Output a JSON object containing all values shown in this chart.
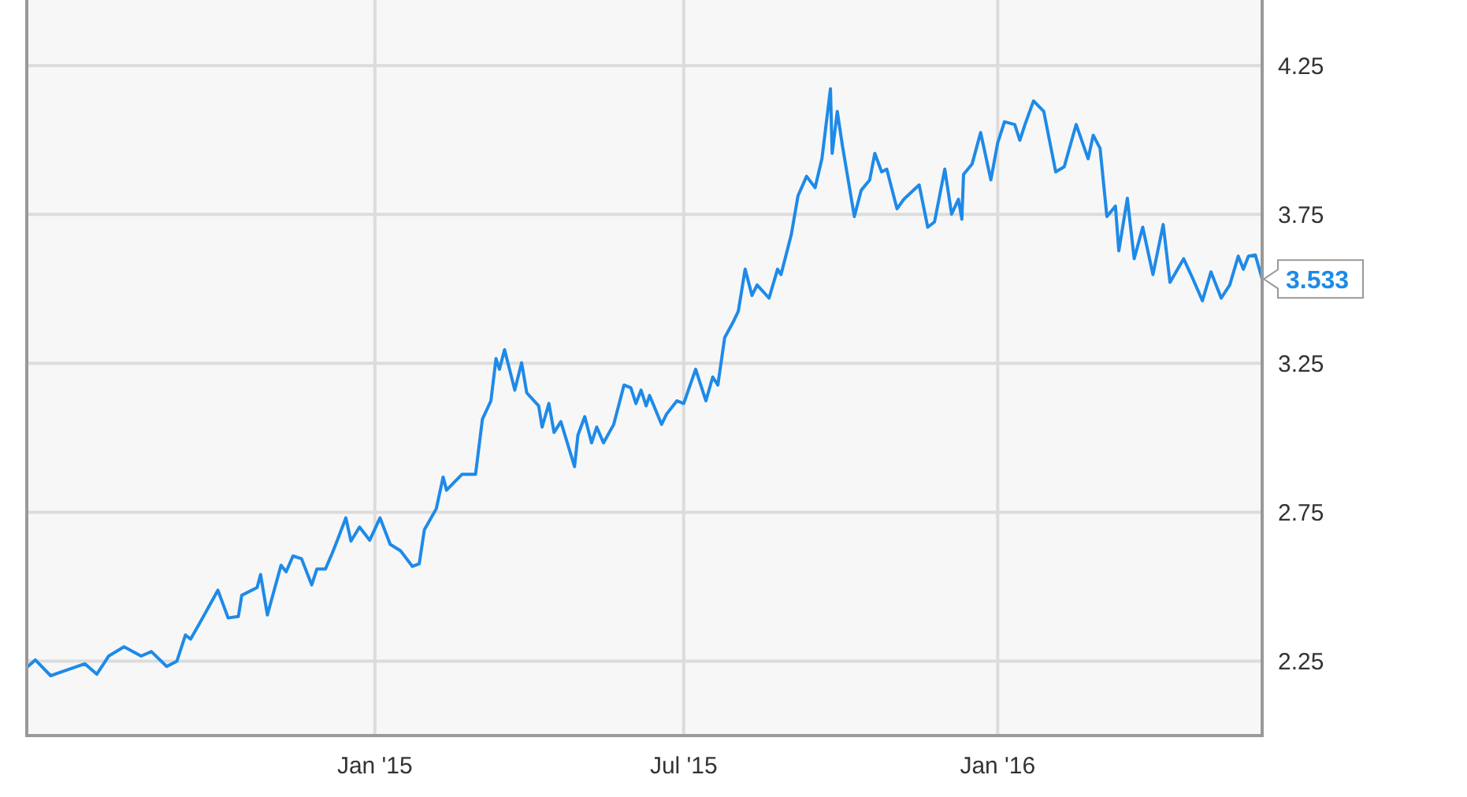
{
  "chart_data": {
    "type": "line",
    "color": "#1e8ae8",
    "xlim": [
      "2014-06-11",
      "2016-06-04"
    ],
    "ylim": [
      2.0,
      4.47
    ],
    "xticks": [
      {
        "value": "2015-01-01",
        "label": "Jan '15"
      },
      {
        "value": "2015-07-01",
        "label": "Jul '15"
      },
      {
        "value": "2016-01-01",
        "label": "Jan '16"
      }
    ],
    "yticks": [
      2.25,
      2.75,
      3.25,
      3.75,
      4.25
    ],
    "grid": true,
    "marker": "none",
    "line_style": "solid",
    "annotations": [
      {
        "text": "3.533",
        "x": "2016-06-04",
        "y": 3.533
      }
    ],
    "x": [
      "2014-06-11",
      "2014-06-16",
      "2014-06-25",
      "2014-07-02",
      "2014-07-15",
      "2014-07-22",
      "2014-07-29",
      "2014-08-07",
      "2014-08-17",
      "2014-08-23",
      "2014-09-01",
      "2014-09-07",
      "2014-09-12",
      "2014-09-15",
      "2014-09-20",
      "2014-10-01",
      "2014-10-07",
      "2014-10-13",
      "2014-10-15",
      "2014-10-24",
      "2014-10-26",
      "2014-10-30",
      "2014-11-07",
      "2014-11-10",
      "2014-11-14",
      "2014-11-19",
      "2014-11-25",
      "2014-11-28",
      "2014-12-03",
      "2014-12-07",
      "2014-12-10",
      "2014-12-15",
      "2014-12-18",
      "2014-12-23",
      "2014-12-29",
      "2015-01-04",
      "2015-01-10",
      "2015-01-16",
      "2015-01-23",
      "2015-01-27",
      "2015-01-30",
      "2015-02-06",
      "2015-02-10",
      "2015-02-12",
      "2015-02-21",
      "2015-03-01",
      "2015-03-05",
      "2015-03-10",
      "2015-03-13",
      "2015-03-15",
      "2015-03-18",
      "2015-03-24",
      "2015-03-28",
      "2015-03-31",
      "2015-04-07",
      "2015-04-09",
      "2015-04-13",
      "2015-04-16",
      "2015-04-20",
      "2015-04-28",
      "2015-04-30",
      "2015-05-04",
      "2015-05-08",
      "2015-05-11",
      "2015-05-15",
      "2015-05-21",
      "2015-05-27",
      "2015-05-31",
      "2015-06-03",
      "2015-06-06",
      "2015-06-09",
      "2015-06-11",
      "2015-06-18",
      "2015-06-21",
      "2015-06-27",
      "2015-07-01",
      "2015-07-08",
      "2015-07-14",
      "2015-07-18",
      "2015-07-21",
      "2015-07-25",
      "2015-07-30",
      "2015-08-02",
      "2015-08-06",
      "2015-08-10",
      "2015-08-13",
      "2015-08-20",
      "2015-08-25",
      "2015-08-27",
      "2015-09-02",
      "2015-09-06",
      "2015-09-11",
      "2015-09-16",
      "2015-09-20",
      "2015-09-25",
      "2015-09-26",
      "2015-09-29",
      "2015-10-02",
      "2015-10-09",
      "2015-10-13",
      "2015-10-18",
      "2015-10-21",
      "2015-10-25",
      "2015-10-28",
      "2015-11-03",
      "2015-11-07",
      "2015-11-16",
      "2015-11-21",
      "2015-11-25",
      "2015-12-01",
      "2015-12-05",
      "2015-12-09",
      "2015-12-11",
      "2015-12-12",
      "2015-12-17",
      "2015-12-22",
      "2015-12-28",
      "2016-01-01",
      "2016-01-05",
      "2016-01-11",
      "2016-01-14",
      "2016-01-17",
      "2016-01-22",
      "2016-01-28",
      "2016-02-04",
      "2016-02-09",
      "2016-02-16",
      "2016-02-23",
      "2016-02-26",
      "2016-03-01",
      "2016-03-05",
      "2016-03-10",
      "2016-03-12",
      "2016-03-17",
      "2016-03-21",
      "2016-03-26",
      "2016-04-01",
      "2016-04-07",
      "2016-04-11",
      "2016-04-19",
      "2016-04-24",
      "2016-04-30",
      "2016-05-05",
      "2016-05-11",
      "2016-05-16",
      "2016-05-21",
      "2016-05-24",
      "2016-05-27",
      "2016-05-31",
      "2016-06-04"
    ],
    "values": [
      2.229,
      2.254,
      2.201,
      2.215,
      2.241,
      2.206,
      2.267,
      2.298,
      2.267,
      2.282,
      2.232,
      2.25,
      2.338,
      2.324,
      2.374,
      2.488,
      2.395,
      2.4,
      2.471,
      2.497,
      2.541,
      2.405,
      2.572,
      2.55,
      2.603,
      2.594,
      2.506,
      2.559,
      2.559,
      2.612,
      2.656,
      2.731,
      2.653,
      2.7,
      2.656,
      2.731,
      2.642,
      2.621,
      2.568,
      2.577,
      2.691,
      2.762,
      2.868,
      2.824,
      2.877,
      2.877,
      3.062,
      3.124,
      3.266,
      3.23,
      3.296,
      3.16,
      3.252,
      3.151,
      3.107,
      3.036,
      3.115,
      3.018,
      3.054,
      2.903,
      3.009,
      3.071,
      2.983,
      3.036,
      2.983,
      3.045,
      3.177,
      3.168,
      3.115,
      3.16,
      3.107,
      3.142,
      3.045,
      3.08,
      3.124,
      3.115,
      3.23,
      3.124,
      3.204,
      3.177,
      3.336,
      3.389,
      3.425,
      3.566,
      3.478,
      3.513,
      3.469,
      3.566,
      3.548,
      3.681,
      3.813,
      3.878,
      3.84,
      3.937,
      4.172,
      3.955,
      4.096,
      3.981,
      3.743,
      3.831,
      3.866,
      3.955,
      3.893,
      3.902,
      3.769,
      3.801,
      3.849,
      3.707,
      3.725,
      3.902,
      3.751,
      3.801,
      3.734,
      3.884,
      3.919,
      4.025,
      3.866,
      3.99,
      4.061,
      4.052,
      3.999,
      4.052,
      4.131,
      4.096,
      3.893,
      3.91,
      4.052,
      3.937,
      4.016,
      3.972,
      3.743,
      3.778,
      3.628,
      3.804,
      3.601,
      3.707,
      3.548,
      3.716,
      3.522,
      3.601,
      3.539,
      3.46,
      3.557,
      3.469,
      3.513,
      3.61,
      3.566,
      3.61,
      3.614,
      3.533
    ]
  }
}
